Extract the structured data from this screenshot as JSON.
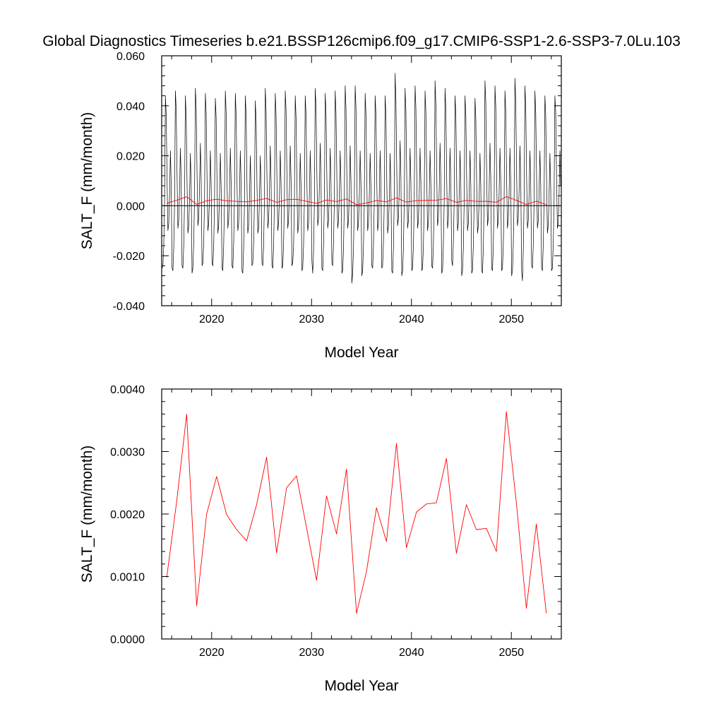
{
  "page_title": "Global Diagnostics Timeseries b.e21.BSSP126cmip6.f09_g17.CMIP6-SSP1-2.6-SSP3-7.0Lu.103",
  "colors": {
    "monthly_series": "#000000",
    "annual_series": "#ff0000",
    "frame": "#000000",
    "background": "#ffffff"
  },
  "chart_data": [
    {
      "type": "line",
      "title": "Global Diagnostics Timeseries b.e21.BSSP126cmip6.f09_g17.CMIP6-SSP1-2.6-SSP3-7.0Lu.103",
      "xlabel": "Model Year",
      "ylabel": "SALT_F (mm/month)",
      "xlim": [
        2015,
        2055
      ],
      "ylim": [
        -0.04,
        0.06
      ],
      "x_ticks": [
        2020,
        2030,
        2040,
        2050
      ],
      "x_tick_labels": [
        "2020",
        "2030",
        "2040",
        "2050"
      ],
      "y_ticks": [
        -0.04,
        -0.02,
        0.0,
        0.02,
        0.04,
        0.06
      ],
      "y_tick_labels": [
        "-0.040",
        "-0.020",
        "0.000",
        "0.020",
        "0.040",
        "0.060"
      ],
      "zero_line": true,
      "grid": false,
      "series": [
        {
          "color": "#000000",
          "x_start": 2015.04,
          "x_step": 0.0833,
          "values": [
            -0.025,
            -0.024,
            -0.016,
            0.002,
            0.044,
            0.036,
            0.01,
            -0.01,
            -0.007,
            0.004,
            0.022,
            0.008,
            -0.025,
            -0.026,
            -0.017,
            0.001,
            0.046,
            0.038,
            0.012,
            -0.009,
            -0.006,
            0.006,
            0.023,
            0.009,
            -0.024,
            -0.025,
            -0.016,
            0.002,
            0.044,
            0.035,
            0.009,
            -0.011,
            -0.008,
            0.003,
            0.021,
            0.007,
            -0.027,
            -0.025,
            -0.015,
            0.003,
            0.047,
            0.039,
            0.013,
            -0.008,
            -0.005,
            0.007,
            0.025,
            0.01,
            -0.024,
            -0.023,
            -0.015,
            0.002,
            0.045,
            0.037,
            0.011,
            -0.01,
            -0.007,
            0.004,
            0.022,
            0.008,
            -0.023,
            -0.024,
            -0.016,
            0.001,
            0.043,
            0.035,
            0.01,
            -0.011,
            -0.008,
            0.004,
            0.021,
            0.007,
            -0.025,
            -0.026,
            -0.016,
            0.002,
            0.046,
            0.037,
            0.011,
            -0.009,
            -0.006,
            0.005,
            0.023,
            0.009,
            -0.024,
            -0.025,
            -0.015,
            0.003,
            0.045,
            0.036,
            0.01,
            -0.01,
            -0.007,
            0.004,
            0.022,
            0.008,
            -0.026,
            -0.027,
            -0.017,
            0.001,
            0.044,
            0.036,
            0.009,
            -0.011,
            -0.008,
            0.003,
            0.02,
            0.006,
            -0.024,
            -0.023,
            -0.015,
            0.002,
            0.042,
            0.034,
            0.009,
            -0.011,
            -0.009,
            0.003,
            0.02,
            0.007,
            -0.023,
            -0.024,
            -0.016,
            0.002,
            0.047,
            0.038,
            0.012,
            -0.009,
            -0.006,
            0.005,
            0.024,
            0.009,
            -0.024,
            -0.025,
            -0.016,
            0.002,
            0.045,
            0.036,
            0.01,
            -0.01,
            -0.007,
            0.004,
            0.022,
            0.008,
            -0.025,
            -0.024,
            -0.015,
            0.003,
            0.046,
            0.038,
            0.012,
            -0.009,
            -0.006,
            0.006,
            0.024,
            0.01,
            -0.024,
            -0.023,
            -0.016,
            0.001,
            0.044,
            0.035,
            0.009,
            -0.011,
            -0.008,
            0.003,
            0.021,
            0.007,
            -0.026,
            -0.025,
            -0.016,
            0.002,
            0.044,
            0.036,
            0.01,
            -0.01,
            -0.007,
            0.004,
            0.022,
            0.008,
            -0.022,
            -0.027,
            -0.018,
            0.001,
            0.047,
            0.039,
            0.013,
            -0.008,
            -0.005,
            0.007,
            0.025,
            0.01,
            -0.025,
            -0.026,
            -0.016,
            0.002,
            0.045,
            0.037,
            0.011,
            -0.009,
            -0.006,
            0.005,
            0.023,
            0.009,
            -0.023,
            -0.024,
            -0.015,
            0.002,
            0.046,
            0.037,
            0.011,
            -0.009,
            -0.006,
            0.005,
            0.022,
            0.008,
            -0.027,
            -0.026,
            -0.017,
            0.002,
            0.048,
            0.039,
            0.012,
            -0.009,
            -0.006,
            0.005,
            0.024,
            0.009,
            -0.031,
            -0.027,
            -0.017,
            0.001,
            0.048,
            0.039,
            0.012,
            -0.01,
            -0.007,
            0.004,
            0.022,
            0.008,
            -0.028,
            -0.026,
            -0.016,
            0.002,
            0.045,
            0.036,
            0.01,
            -0.01,
            -0.007,
            0.004,
            0.021,
            0.007,
            -0.024,
            -0.025,
            -0.016,
            0.002,
            0.044,
            0.036,
            0.01,
            -0.01,
            -0.007,
            0.004,
            0.022,
            0.008,
            -0.025,
            -0.024,
            -0.015,
            0.002,
            0.044,
            0.036,
            0.01,
            -0.011,
            -0.008,
            0.003,
            0.021,
            0.007,
            -0.026,
            -0.027,
            -0.017,
            0.003,
            0.053,
            0.042,
            0.014,
            -0.008,
            -0.005,
            0.007,
            0.026,
            0.011,
            -0.028,
            -0.026,
            -0.017,
            0.002,
            0.047,
            0.038,
            0.011,
            -0.009,
            -0.006,
            0.005,
            0.023,
            0.009,
            -0.026,
            -0.025,
            -0.016,
            0.002,
            0.048,
            0.039,
            0.012,
            -0.009,
            -0.006,
            0.005,
            0.023,
            0.009,
            -0.026,
            -0.025,
            -0.016,
            0.002,
            0.046,
            0.037,
            0.011,
            -0.01,
            -0.007,
            0.004,
            0.022,
            0.008,
            -0.024,
            -0.025,
            -0.016,
            0.003,
            0.05,
            0.04,
            0.013,
            -0.008,
            -0.005,
            0.006,
            0.025,
            0.01,
            -0.027,
            -0.026,
            -0.016,
            0.002,
            0.047,
            0.038,
            0.011,
            -0.009,
            -0.006,
            0.005,
            0.023,
            0.009,
            -0.022,
            -0.024,
            -0.015,
            0.002,
            0.044,
            0.036,
            0.01,
            -0.01,
            -0.007,
            0.004,
            0.022,
            0.008,
            -0.028,
            -0.026,
            -0.017,
            0.002,
            0.044,
            0.036,
            0.01,
            -0.01,
            -0.007,
            0.004,
            0.022,
            0.008,
            -0.027,
            -0.026,
            -0.016,
            0.002,
            0.043,
            0.035,
            0.009,
            -0.011,
            -0.008,
            0.003,
            0.021,
            0.007,
            -0.026,
            -0.027,
            -0.017,
            0.003,
            0.05,
            0.041,
            0.013,
            -0.008,
            -0.005,
            0.006,
            0.025,
            0.01,
            -0.025,
            -0.026,
            -0.016,
            0.002,
            0.048,
            0.039,
            0.012,
            -0.009,
            -0.006,
            0.005,
            0.023,
            0.009,
            -0.026,
            -0.025,
            -0.016,
            0.002,
            0.046,
            0.037,
            0.011,
            -0.009,
            -0.006,
            0.005,
            0.023,
            0.009,
            -0.028,
            -0.026,
            -0.016,
            0.003,
            0.051,
            0.041,
            0.013,
            -0.008,
            -0.005,
            0.006,
            0.024,
            0.01,
            -0.026,
            -0.03,
            -0.018,
            0.002,
            0.048,
            0.039,
            0.012,
            -0.009,
            -0.006,
            0.005,
            0.022,
            0.008,
            -0.024,
            -0.025,
            -0.016,
            0.002,
            0.046,
            0.037,
            0.011,
            -0.009,
            -0.006,
            0.005,
            0.022,
            0.008,
            -0.025,
            -0.026,
            -0.016,
            0.002,
            0.044,
            0.036,
            0.01,
            -0.011,
            -0.008,
            0.003,
            0.021,
            0.007,
            -0.026,
            -0.025,
            -0.016,
            0.002,
            0.044,
            0.037,
            0.011,
            -0.009,
            -0.007,
            0.004,
            0.022,
            0.008
          ]
        },
        {
          "color": "#ff0000",
          "x_start": 2015.5,
          "x_step": 1,
          "values": [
            0.00098,
            0.0022,
            0.0036,
            0.00053,
            0.002,
            0.0026,
            0.00199,
            0.00175,
            0.00157,
            0.00215,
            0.00291,
            0.00138,
            0.00242,
            0.00261,
            0.00178,
            0.00094,
            0.00229,
            0.00168,
            0.00272,
            0.00041,
            0.00108,
            0.0021,
            0.00156,
            0.00313,
            0.00146,
            0.00203,
            0.00216,
            0.00218,
            0.00289,
            0.00137,
            0.00215,
            0.00175,
            0.00177,
            0.0014,
            0.00364,
            0.00218,
            0.00049,
            0.00184,
            0.00041
          ]
        }
      ]
    },
    {
      "type": "line",
      "xlabel": "Model Year",
      "ylabel": "SALT_F (mm/month)",
      "xlim": [
        2015,
        2055
      ],
      "ylim": [
        0.0,
        0.004
      ],
      "x_ticks": [
        2020,
        2030,
        2040,
        2050
      ],
      "x_tick_labels": [
        "2020",
        "2030",
        "2040",
        "2050"
      ],
      "y_ticks": [
        0.0,
        0.001,
        0.002,
        0.003,
        0.004
      ],
      "y_tick_labels": [
        "0.0000",
        "0.0010",
        "0.0020",
        "0.0030",
        "0.0040"
      ],
      "grid": false,
      "series": [
        {
          "color": "#ff0000",
          "x_start": 2015.5,
          "x_step": 1,
          "values": [
            0.00098,
            0.0022,
            0.0036,
            0.00053,
            0.002,
            0.0026,
            0.00199,
            0.00175,
            0.00157,
            0.00215,
            0.00291,
            0.00138,
            0.00242,
            0.00261,
            0.00178,
            0.00094,
            0.00229,
            0.00168,
            0.00272,
            0.00041,
            0.00108,
            0.0021,
            0.00156,
            0.00313,
            0.00146,
            0.00203,
            0.00216,
            0.00218,
            0.00289,
            0.00137,
            0.00215,
            0.00175,
            0.00177,
            0.0014,
            0.00364,
            0.00218,
            0.00049,
            0.00184,
            0.00041
          ]
        }
      ]
    }
  ]
}
